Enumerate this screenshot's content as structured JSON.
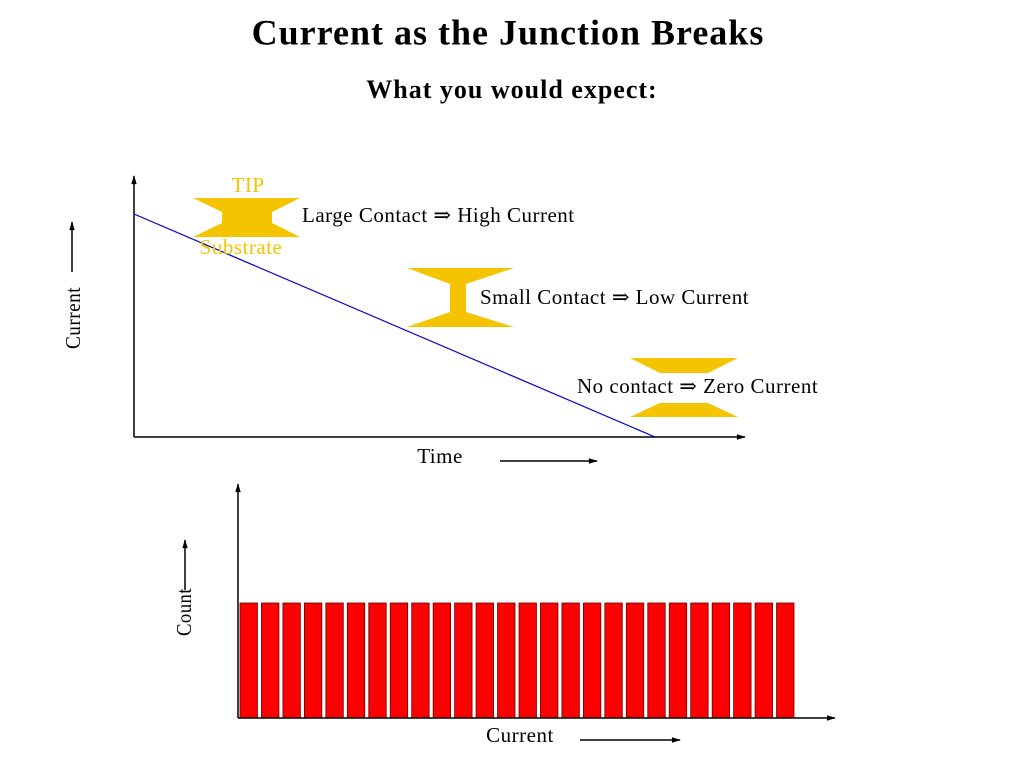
{
  "title": "Current as the Junction Breaks",
  "subtitle": "What you would expect:",
  "time_plot": {
    "y_label": "Current",
    "x_label": "Time",
    "states": [
      {
        "label": "Large Contact ⇒ High Current",
        "tip": "TIP",
        "substrate": "Substrate"
      },
      {
        "label": "Small Contact ⇒ Low Current"
      },
      {
        "label": "No contact ⇒ Zero Current"
      }
    ]
  },
  "count_plot": {
    "y_label": "Count",
    "x_label": "Current"
  }
}
